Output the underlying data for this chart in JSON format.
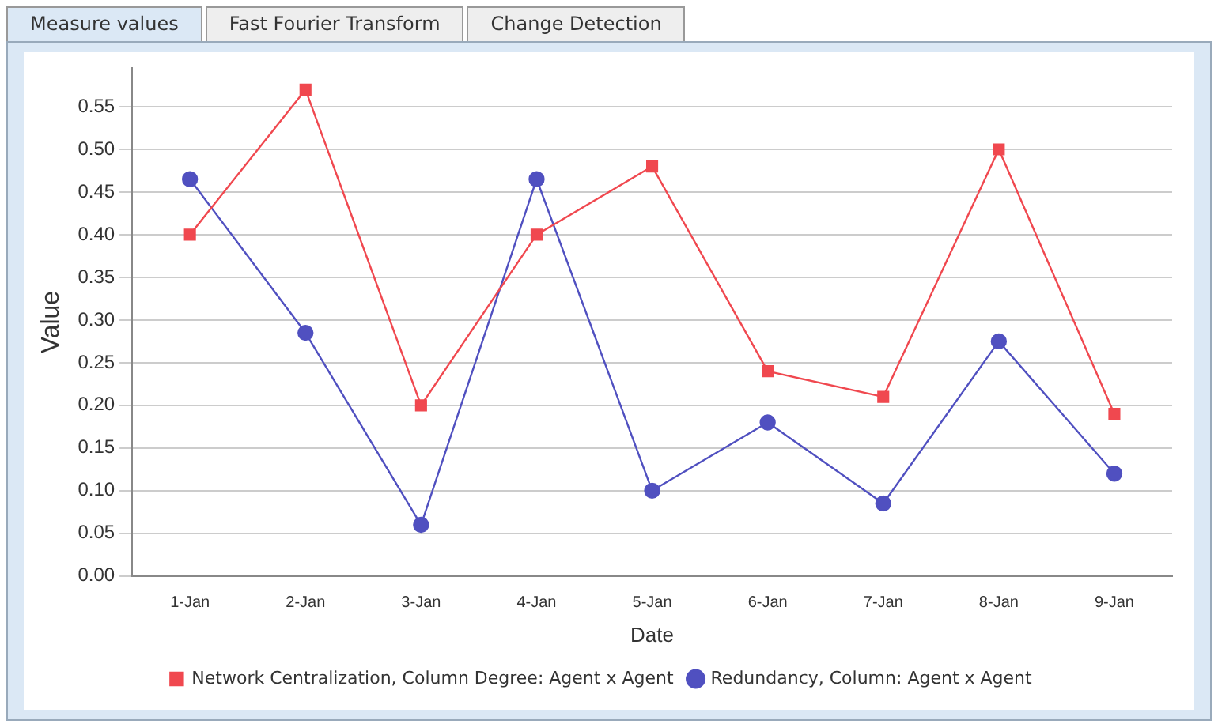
{
  "chart_data": {
    "type": "line",
    "xlabel": "Date",
    "ylabel": "Value",
    "annotations": [
      "Measure values",
      "Fast Fourier Transform",
      "Change Detection"
    ],
    "categories": [
      "1-Jan",
      "2-Jan",
      "3-Jan",
      "4-Jan",
      "5-Jan",
      "6-Jan",
      "7-Jan",
      "8-Jan",
      "9-Jan"
    ],
    "series": [
      {
        "name": "Network Centralization, Column Degree: Agent x Agent",
        "color": "#f0484f",
        "marker": "square",
        "values": [
          0.4,
          0.57,
          0.2,
          0.4,
          0.48,
          0.24,
          0.21,
          0.5,
          0.19
        ]
      },
      {
        "name": "Redundancy, Column: Agent x Agent",
        "color": "#5050c0",
        "marker": "circle",
        "values": [
          0.465,
          0.285,
          0.06,
          0.465,
          0.1,
          0.18,
          0.085,
          0.275,
          0.12
        ]
      }
    ],
    "ylim": [
      0,
      0.595
    ],
    "yticks": [
      {
        "value": 0,
        "label": "0.00"
      },
      {
        "value": 0.05,
        "label": "0.05"
      },
      {
        "value": 0.1,
        "label": "0.10"
      },
      {
        "value": 0.15,
        "label": "0.15"
      },
      {
        "value": 0.2,
        "label": "0.20"
      },
      {
        "value": 0.25,
        "label": "0.25"
      },
      {
        "value": 0.3,
        "label": "0.30"
      },
      {
        "value": 0.35,
        "label": "0.35"
      },
      {
        "value": 0.4,
        "label": "0.40"
      },
      {
        "value": 0.45,
        "label": "0.45"
      },
      {
        "value": 0.5,
        "label": "0.50"
      },
      {
        "value": 0.55,
        "label": "0.55"
      }
    ],
    "grid": "y",
    "legend": "bottom",
    "line_style": "solid"
  }
}
